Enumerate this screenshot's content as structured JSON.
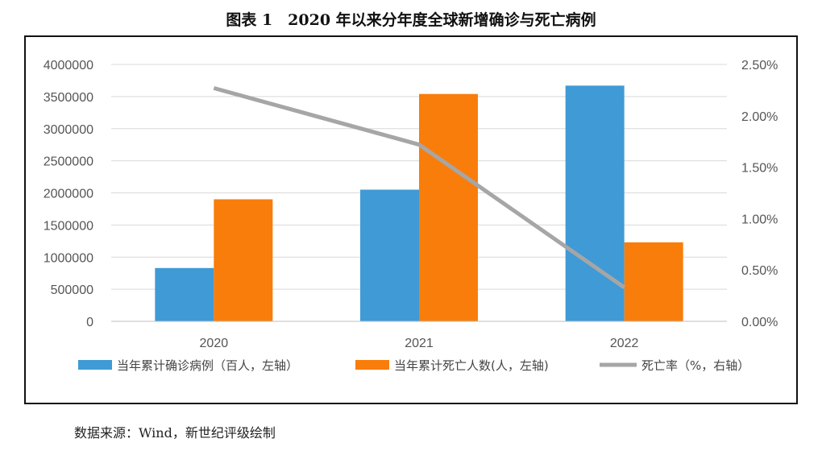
{
  "title": "图表 1　2020 年以来分年度全球新增确诊与死亡病例",
  "source": "数据来源：Wind，新世纪评级绘制",
  "colors": {
    "confirmed": "#3f9ad6",
    "deaths": "#f97d0b",
    "rate": "#a6a6a6",
    "grid": "#d9d9d9"
  },
  "chart_data": {
    "type": "bar",
    "categories": [
      "2020",
      "2021",
      "2022"
    ],
    "series": [
      {
        "name": "当年累计确诊病例（百人，左轴）",
        "axis": "left",
        "kind": "bar",
        "values": [
          830000,
          2050000,
          3670000
        ]
      },
      {
        "name": "当年累计死亡人数(人，左轴)",
        "axis": "left",
        "kind": "bar",
        "values": [
          1900000,
          3540000,
          1230000
        ]
      },
      {
        "name": "死亡率（%，右轴）",
        "axis": "right",
        "kind": "line",
        "values": [
          2.27,
          1.72,
          0.33
        ]
      }
    ],
    "left_axis": {
      "min": 0,
      "max": 4000000,
      "ticks": [
        "0",
        "500000",
        "1000000",
        "1500000",
        "2000000",
        "2500000",
        "3000000",
        "3500000",
        "4000000"
      ]
    },
    "right_axis": {
      "min": 0,
      "max": 2.5,
      "ticks": [
        "0.00%",
        "0.50%",
        "1.00%",
        "1.50%",
        "2.00%",
        "2.50%"
      ]
    },
    "grid": true,
    "legend": "bottom"
  }
}
